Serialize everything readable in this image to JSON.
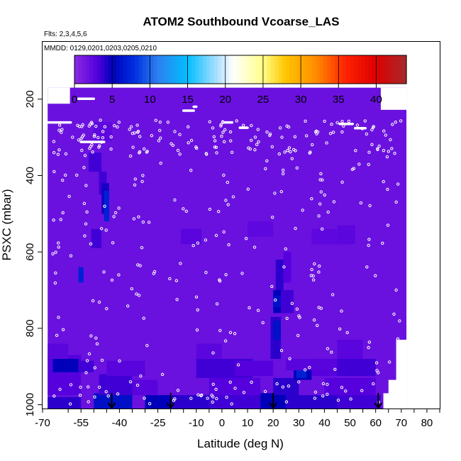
{
  "chart_data": {
    "type": "heatmap",
    "title": "ATOM2 Southbound Vcoarse_LAS",
    "flights_text": "Flts: 2,3,4,5,6",
    "dates_text": "MMDD: 0129,0201,0203,0205,0210",
    "xlabel": "Latitude (deg N)",
    "ylabel": "PSXC (mbar)",
    "xlim": [
      -70,
      85
    ],
    "ylim": [
      1010,
      50
    ],
    "x_ticks": [
      -70,
      -55,
      -40,
      -25,
      -10,
      0,
      10,
      20,
      30,
      40,
      50,
      60,
      70,
      80
    ],
    "x_tick_labels": [
      "-70",
      "-55",
      "-40",
      "-25",
      "-10",
      "0",
      "10",
      "20",
      "30",
      "40",
      "50",
      "60",
      "70",
      "80"
    ],
    "x_minor_ticks": [
      -60,
      -50,
      -45,
      -35,
      -30,
      -20,
      -15,
      -5,
      5,
      15,
      25,
      35,
      45,
      55,
      65,
      75,
      85
    ],
    "y_ticks": [
      200,
      400,
      600,
      800,
      1000
    ],
    "y_tick_labels": [
      "200",
      "400",
      "600",
      "800",
      "1000"
    ],
    "colorbar": {
      "min": 0,
      "max": 44,
      "ticks": [
        0,
        5,
        10,
        15,
        20,
        25,
        30,
        35,
        40
      ],
      "tick_labels": [
        "0",
        "5",
        "10",
        "15",
        "20",
        "25",
        "30",
        "35",
        "40"
      ],
      "stops": [
        [
          0,
          "#8a2be2"
        ],
        [
          3,
          "#5500dd"
        ],
        [
          5,
          "#0000bb"
        ],
        [
          8,
          "#0030e0"
        ],
        [
          11,
          "#2e7ff0"
        ],
        [
          15,
          "#00bfff"
        ],
        [
          19,
          "#b0e0ff"
        ],
        [
          21,
          "#ffffff"
        ],
        [
          25,
          "#ffff88"
        ],
        [
          28,
          "#ffc400"
        ],
        [
          32,
          "#ff8c00"
        ],
        [
          36,
          "#ff2000"
        ],
        [
          40,
          "#dd0000"
        ],
        [
          44,
          "#a52a2a"
        ]
      ]
    },
    "background_value": 1.8,
    "data_extent": {
      "lat": [
        -68,
        72
      ],
      "p": [
        170,
        1010
      ]
    },
    "cutout_regions": [
      {
        "lat": [
          -68,
          -59.3
        ],
        "p": [
          170,
          212
        ]
      },
      {
        "lat": [
          62,
          72
        ],
        "p": [
          170,
          228
        ]
      },
      {
        "lat": [
          68,
          72
        ],
        "p": [
          830,
          1010
        ]
      },
      {
        "lat": [
          65,
          72
        ],
        "p": [
          935,
          1010
        ]
      },
      {
        "lat": [
          63,
          72
        ],
        "p": [
          970,
          1010
        ]
      }
    ],
    "anomaly_cells": [
      {
        "lat": [
          -68,
          -55
        ],
        "p": [
          980,
          1010
        ],
        "v": 4
      },
      {
        "lat": [
          -50,
          -35
        ],
        "p": [
          970,
          1010
        ],
        "v": 6
      },
      {
        "lat": [
          -30,
          -20
        ],
        "p": [
          975,
          1010
        ],
        "v": 5
      },
      {
        "lat": [
          -20,
          -5
        ],
        "p": [
          975,
          1010
        ],
        "v": 4
      },
      {
        "lat": [
          -5,
          15
        ],
        "p": [
          975,
          1010
        ],
        "v": 3.5
      },
      {
        "lat": [
          15,
          25
        ],
        "p": [
          970,
          1010
        ],
        "v": 5
      },
      {
        "lat": [
          25,
          45
        ],
        "p": [
          975,
          1010
        ],
        "v": 4
      },
      {
        "lat": [
          45,
          62
        ],
        "p": [
          975,
          1010
        ],
        "v": 3.5
      },
      {
        "lat": [
          -68,
          -55
        ],
        "p": [
          930,
          975
        ],
        "v": 3
      },
      {
        "lat": [
          -48,
          -35
        ],
        "p": [
          920,
          975
        ],
        "v": 3.5
      },
      {
        "lat": [
          -35,
          -25
        ],
        "p": [
          935,
          975
        ],
        "v": 2.8
      },
      {
        "lat": [
          -5,
          15
        ],
        "p": [
          930,
          975
        ],
        "v": 3
      },
      {
        "lat": [
          20,
          30
        ],
        "p": [
          930,
          975
        ],
        "v": 4
      },
      {
        "lat": [
          40,
          60
        ],
        "p": [
          930,
          975
        ],
        "v": 3
      },
      {
        "lat": [
          -68,
          -55
        ],
        "p": [
          870,
          930
        ],
        "v": 3
      },
      {
        "lat": [
          -66,
          -56
        ],
        "p": [
          880,
          915
        ],
        "v": 5
      },
      {
        "lat": [
          -56,
          -50
        ],
        "p": [
          885,
          915
        ],
        "v": 3.5
      },
      {
        "lat": [
          -45,
          -30
        ],
        "p": [
          885,
          925
        ],
        "v": 2.8
      },
      {
        "lat": [
          -10,
          12
        ],
        "p": [
          880,
          930
        ],
        "v": 3.5
      },
      {
        "lat": [
          5,
          20
        ],
        "p": [
          885,
          925
        ],
        "v": 3
      },
      {
        "lat": [
          28,
          35
        ],
        "p": [
          885,
          935
        ],
        "v": 5
      },
      {
        "lat": [
          29,
          33
        ],
        "p": [
          890,
          930
        ],
        "v": 7
      },
      {
        "lat": [
          35,
          45
        ],
        "p": [
          880,
          925
        ],
        "v": 3
      },
      {
        "lat": [
          45,
          60
        ],
        "p": [
          880,
          925
        ],
        "v": 3.5
      },
      {
        "lat": [
          -68,
          -60
        ],
        "p": [
          840,
          880
        ],
        "v": 2.6
      },
      {
        "lat": [
          -10,
          0
        ],
        "p": [
          840,
          880
        ],
        "v": 2.6
      },
      {
        "lat": [
          45,
          55
        ],
        "p": [
          830,
          880
        ],
        "v": 2.7
      },
      {
        "lat": [
          19,
          23
        ],
        "p": [
          770,
          880
        ],
        "v": 4
      },
      {
        "lat": [
          20,
          23
        ],
        "p": [
          780,
          830
        ],
        "v": 6
      },
      {
        "lat": [
          20,
          25
        ],
        "p": [
          700,
          760
        ],
        "v": 5
      },
      {
        "lat": [
          20,
          23
        ],
        "p": [
          715,
          745
        ],
        "v": 6
      },
      {
        "lat": [
          23,
          28
        ],
        "p": [
          700,
          760
        ],
        "v": 3.5
      },
      {
        "lat": [
          21,
          24
        ],
        "p": [
          620,
          700
        ],
        "v": 4
      },
      {
        "lat": [
          24,
          27
        ],
        "p": [
          600,
          680
        ],
        "v": 3
      },
      {
        "lat": [
          -16,
          -8
        ],
        "p": [
          540,
          580
        ],
        "v": 2.7
      },
      {
        "lat": [
          10,
          20
        ],
        "p": [
          520,
          560
        ],
        "v": 2.5
      },
      {
        "lat": [
          35,
          45
        ],
        "p": [
          540,
          580
        ],
        "v": 2.5
      },
      {
        "lat": [
          45,
          52
        ],
        "p": [
          530,
          580
        ],
        "v": 2.6
      },
      {
        "lat": [
          -50,
          -43
        ],
        "p": [
          260,
          310
        ],
        "v": 2.5
      },
      {
        "lat": [
          -52,
          -47
        ],
        "p": [
          340,
          390
        ],
        "v": 3.5
      },
      {
        "lat": [
          -48,
          -45
        ],
        "p": [
          390,
          450
        ],
        "v": 3.5
      },
      {
        "lat": [
          -47,
          -44
        ],
        "p": [
          420,
          500
        ],
        "v": 4.5
      },
      {
        "lat": [
          -46,
          -44
        ],
        "p": [
          440,
          520
        ],
        "v": 7
      },
      {
        "lat": [
          -51,
          -47
        ],
        "p": [
          540,
          590
        ],
        "v": 3.5
      },
      {
        "lat": [
          -56,
          -54
        ],
        "p": [
          640,
          680
        ],
        "v": 7
      },
      {
        "lat": [
          25,
          45
        ],
        "p": [
          880,
          910
        ],
        "v": 2.8
      }
    ],
    "white_bars": [
      {
        "lat": [
          -68,
          -59
        ],
        "p": 261
      },
      {
        "lat": [
          -56,
          -50
        ],
        "p": 199
      },
      {
        "lat": [
          -55,
          -46
        ],
        "p": 312
      },
      {
        "lat": [
          -15,
          -11
        ],
        "p": 230
      },
      {
        "lat": [
          -11,
          -10
        ],
        "p": 220
      },
      {
        "lat": [
          1,
          4
        ],
        "p": 261
      },
      {
        "lat": [
          7,
          10
        ],
        "p": 275
      },
      {
        "lat": [
          46,
          51
        ],
        "p": 265
      },
      {
        "lat": [
          52,
          56
        ],
        "p": 276
      },
      {
        "lat": [
          63,
          68
        ],
        "p": 197
      }
    ],
    "arrows_lat": [
      -43,
      -20,
      20,
      61
    ],
    "circles_note": "Scattered open white circles mark individual sample locations along flight tracks"
  }
}
